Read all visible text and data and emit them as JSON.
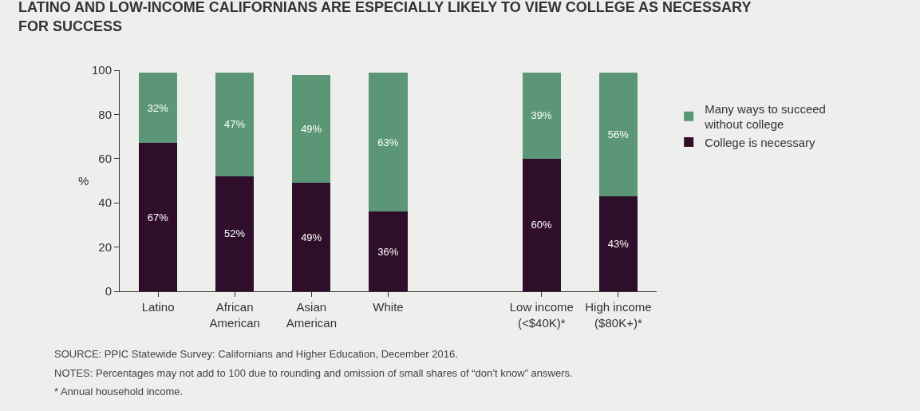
{
  "chart_data": {
    "type": "bar",
    "title": "LATINO AND LOW-INCOME CALIFORNIANS ARE ESPECIALLY LIKELY TO VIEW COLLEGE AS NECESSARY FOR SUCCESS",
    "ylabel": "%",
    "stacked": true,
    "legend": "right",
    "grid": false,
    "categories": [
      "Latino",
      "African\nAmerican",
      "Asian\nAmerican",
      "White",
      null,
      "Low income\n(<$40K)*",
      "High income\n($80K+)*"
    ],
    "ylim": [
      0,
      100
    ],
    "yticks": [
      0,
      20,
      40,
      60,
      80,
      100
    ],
    "series": [
      {
        "name": "College is necessary",
        "color": "#2e0e2b",
        "values": [
          67,
          52,
          49,
          36,
          null,
          60,
          43
        ],
        "value_labels": [
          "67%",
          "52%",
          "49%",
          "36%",
          null,
          "60%",
          "43%"
        ]
      },
      {
        "name": "Many ways to succeed\nwithout college",
        "color": "#5b9677",
        "values": [
          32,
          47,
          49,
          63,
          null,
          39,
          56
        ],
        "value_labels": [
          "32%",
          "47%",
          "49%",
          "63%",
          null,
          "39%",
          "56%"
        ]
      }
    ],
    "annotations": [
      "SOURCE: PPIC Statewide Survey: Californians and Higher Education, December 2016.",
      "NOTES: Percentages may not add to 100 due to rounding and omission of small shares of “don’t know” answers.",
      "* Annual household income."
    ]
  }
}
